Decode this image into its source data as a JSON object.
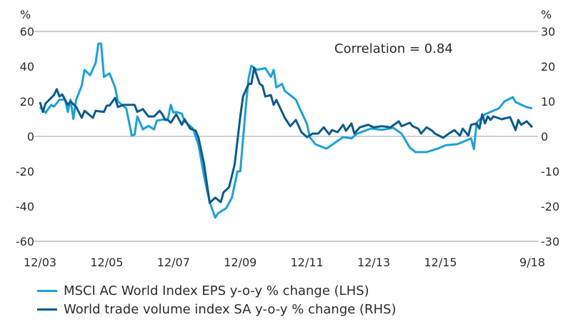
{
  "chart_data": {
    "type": "line",
    "title": "",
    "annotation": "Correlation = 0.84",
    "left_axis": {
      "unit_label": "%",
      "ylim": [
        -60,
        60
      ],
      "ticks": [
        "60",
        "40",
        "20",
        "0",
        "-20",
        "-40",
        "-60"
      ]
    },
    "right_axis": {
      "unit_label": "%",
      "ylim": [
        -30,
        30
      ],
      "ticks": [
        "30",
        "20",
        "10",
        "0",
        "-10",
        "-20",
        "-30"
      ]
    },
    "x_axis": {
      "range": [
        "2003-12",
        "2018-09"
      ],
      "ticks": [
        {
          "date": "2003-12",
          "label": "12/03"
        },
        {
          "date": "2005-12",
          "label": "12/05"
        },
        {
          "date": "2007-12",
          "label": "12/07"
        },
        {
          "date": "2009-12",
          "label": "12/09"
        },
        {
          "date": "2011-12",
          "label": "12/11"
        },
        {
          "date": "2013-12",
          "label": "12/13"
        },
        {
          "date": "2015-12",
          "label": "12/15"
        },
        {
          "date": "2018-09",
          "label": "9/18"
        }
      ]
    },
    "grid": "horizontal lines at top, zero and bottom",
    "legend_position": "bottom-left",
    "series": [
      {
        "name": "MSCI AC World Index EPS y-o-y % change (LHS)",
        "axis": "left",
        "color": "#1ba1dc",
        "points": [
          [
            "2003-12",
            16.7
          ],
          [
            "2004-02",
            13.5
          ],
          [
            "2004-04",
            18
          ],
          [
            "2004-05",
            17
          ],
          [
            "2004-07",
            21
          ],
          [
            "2004-09",
            21
          ],
          [
            "2004-10",
            14
          ],
          [
            "2004-11",
            21
          ],
          [
            "2004-12",
            10
          ],
          [
            "2005-01",
            21
          ],
          [
            "2005-03",
            29
          ],
          [
            "2005-04",
            38
          ],
          [
            "2005-06",
            35
          ],
          [
            "2005-08",
            42
          ],
          [
            "2005-09",
            53
          ],
          [
            "2005-10",
            53
          ],
          [
            "2005-11",
            34
          ],
          [
            "2006-01",
            36
          ],
          [
            "2006-03",
            28
          ],
          [
            "2006-04",
            20
          ],
          [
            "2006-07",
            16
          ],
          [
            "2006-09",
            0.4
          ],
          [
            "2006-10",
            1
          ],
          [
            "2006-11",
            11.4
          ],
          [
            "2007-01",
            4
          ],
          [
            "2007-03",
            6
          ],
          [
            "2007-05",
            4
          ],
          [
            "2007-06",
            9
          ],
          [
            "2007-10",
            10
          ],
          [
            "2007-11",
            18
          ],
          [
            "2007-12",
            13.5
          ],
          [
            "2008-01",
            14
          ],
          [
            "2008-03",
            13
          ],
          [
            "2008-04",
            8.6
          ],
          [
            "2008-07",
            4.5
          ],
          [
            "2008-09",
            -5
          ],
          [
            "2008-11",
            -23
          ],
          [
            "2009-01",
            -37.5
          ],
          [
            "2009-03",
            -46.5
          ],
          [
            "2009-04",
            -44
          ],
          [
            "2009-07",
            -41
          ],
          [
            "2009-09",
            -35
          ],
          [
            "2009-11",
            -20
          ],
          [
            "2009-12",
            -20
          ],
          [
            "2010-02",
            17
          ],
          [
            "2010-03",
            33
          ],
          [
            "2010-04",
            40.4
          ],
          [
            "2010-06",
            38
          ],
          [
            "2010-09",
            39
          ],
          [
            "2010-11",
            34
          ],
          [
            "2010-12",
            38
          ],
          [
            "2011-01",
            28
          ],
          [
            "2011-03",
            30
          ],
          [
            "2011-04",
            26
          ],
          [
            "2011-08",
            21
          ],
          [
            "2011-10",
            14
          ],
          [
            "2011-12",
            7
          ],
          [
            "2012-01",
            -0.5
          ],
          [
            "2012-03",
            -4.5
          ],
          [
            "2012-07",
            -7
          ],
          [
            "2012-10",
            -3.7
          ],
          [
            "2013-01",
            -0.4
          ],
          [
            "2013-04",
            -1.2
          ],
          [
            "2013-06",
            1.6
          ],
          [
            "2013-11",
            4.5
          ],
          [
            "2014-03",
            3.7
          ],
          [
            "2014-07",
            4.9
          ],
          [
            "2014-10",
            1.6
          ],
          [
            "2015-01",
            -6.5
          ],
          [
            "2015-03",
            -9
          ],
          [
            "2015-07",
            -9
          ],
          [
            "2015-11",
            -7
          ],
          [
            "2016-02",
            -5
          ],
          [
            "2016-06",
            -4.5
          ],
          [
            "2016-09",
            -2.5
          ],
          [
            "2016-11",
            -1.2
          ],
          [
            "2016-12",
            -7.3
          ],
          [
            "2017-01",
            7.8
          ],
          [
            "2017-04",
            12.6
          ],
          [
            "2017-09",
            16
          ],
          [
            "2017-11",
            20
          ],
          [
            "2018-02",
            22.4
          ],
          [
            "2018-03",
            19.6
          ],
          [
            "2018-07",
            16.7
          ],
          [
            "2018-09",
            16
          ]
        ]
      },
      {
        "name": "World trade volume index SA y-o-y % change (RHS)",
        "axis": "right",
        "color": "#0b5a8c",
        "points": [
          [
            "2003-12",
            9.8
          ],
          [
            "2004-01",
            7
          ],
          [
            "2004-02",
            9.4
          ],
          [
            "2004-04",
            11
          ],
          [
            "2004-05",
            11.8
          ],
          [
            "2004-06",
            13.5
          ],
          [
            "2004-07",
            11.4
          ],
          [
            "2004-08",
            12
          ],
          [
            "2004-10",
            9
          ],
          [
            "2004-11",
            10
          ],
          [
            "2005-01",
            8.4
          ],
          [
            "2005-03",
            5.3
          ],
          [
            "2005-04",
            7.3
          ],
          [
            "2005-07",
            5.3
          ],
          [
            "2005-08",
            7.3
          ],
          [
            "2005-11",
            7
          ],
          [
            "2005-12",
            8.8
          ],
          [
            "2006-01",
            8.8
          ],
          [
            "2006-03",
            11
          ],
          [
            "2006-04",
            8.4
          ],
          [
            "2006-06",
            9
          ],
          [
            "2006-09",
            9
          ],
          [
            "2006-10",
            9
          ],
          [
            "2006-11",
            7
          ],
          [
            "2007-01",
            7.8
          ],
          [
            "2007-03",
            5.7
          ],
          [
            "2007-05",
            5.7
          ],
          [
            "2007-07",
            7.3
          ],
          [
            "2007-08",
            6.3
          ],
          [
            "2007-09",
            4.7
          ],
          [
            "2007-10",
            4.7
          ],
          [
            "2007-11",
            3.9
          ],
          [
            "2008-01",
            6.3
          ],
          [
            "2008-03",
            3.3
          ],
          [
            "2008-04",
            4.9
          ],
          [
            "2008-06",
            2.2
          ],
          [
            "2008-08",
            1.6
          ],
          [
            "2008-09",
            -0.4
          ],
          [
            "2008-11",
            -8
          ],
          [
            "2009-01",
            -19
          ],
          [
            "2009-03",
            -17.5
          ],
          [
            "2009-05",
            -18.8
          ],
          [
            "2009-06",
            -16
          ],
          [
            "2009-08",
            -14.5
          ],
          [
            "2009-10",
            -8
          ],
          [
            "2009-12",
            5.7
          ],
          [
            "2010-01",
            11.4
          ],
          [
            "2010-03",
            15
          ],
          [
            "2010-04",
            15
          ],
          [
            "2010-05",
            19.6
          ],
          [
            "2010-07",
            15
          ],
          [
            "2010-08",
            14.5
          ],
          [
            "2010-09",
            11.4
          ],
          [
            "2010-11",
            11.8
          ],
          [
            "2010-12",
            9
          ],
          [
            "2011-01",
            10.4
          ],
          [
            "2011-04",
            5.3
          ],
          [
            "2011-06",
            2.9
          ],
          [
            "2011-08",
            4.7
          ],
          [
            "2011-10",
            1.2
          ],
          [
            "2011-12",
            -0.2
          ],
          [
            "2012-02",
            0.8
          ],
          [
            "2012-04",
            0.8
          ],
          [
            "2012-06",
            2.6
          ],
          [
            "2012-08",
            0.6
          ],
          [
            "2012-09",
            1.8
          ],
          [
            "2012-11",
            1.2
          ],
          [
            "2013-01",
            3.3
          ],
          [
            "2013-02",
            1.6
          ],
          [
            "2013-04",
            3.7
          ],
          [
            "2013-05",
            0.8
          ],
          [
            "2013-07",
            2.6
          ],
          [
            "2013-10",
            3.3
          ],
          [
            "2013-12",
            2.6
          ],
          [
            "2014-03",
            2.9
          ],
          [
            "2014-06",
            2.6
          ],
          [
            "2014-09",
            4.3
          ],
          [
            "2014-10",
            2.9
          ],
          [
            "2015-01",
            3.9
          ],
          [
            "2015-02",
            2.9
          ],
          [
            "2015-04",
            2.2
          ],
          [
            "2015-05",
            0.8
          ],
          [
            "2015-07",
            2.6
          ],
          [
            "2015-09",
            1.6
          ],
          [
            "2015-10",
            0.8
          ],
          [
            "2016-01",
            -0.4
          ],
          [
            "2016-03",
            0.8
          ],
          [
            "2016-05",
            1.8
          ],
          [
            "2016-07",
            0.2
          ],
          [
            "2016-08",
            2.2
          ],
          [
            "2016-10",
            0.2
          ],
          [
            "2016-11",
            3.3
          ],
          [
            "2017-01",
            3.7
          ],
          [
            "2017-02",
            2.2
          ],
          [
            "2017-03",
            6.3
          ],
          [
            "2017-04",
            3.7
          ],
          [
            "2017-05",
            5.7
          ],
          [
            "2017-06",
            4.7
          ],
          [
            "2017-07",
            5.7
          ],
          [
            "2017-10",
            4.9
          ],
          [
            "2018-01",
            5.5
          ],
          [
            "2018-03",
            1.8
          ],
          [
            "2018-04",
            4.7
          ],
          [
            "2018-05",
            3.3
          ],
          [
            "2018-07",
            4.3
          ],
          [
            "2018-09",
            2.6
          ]
        ]
      }
    ]
  }
}
